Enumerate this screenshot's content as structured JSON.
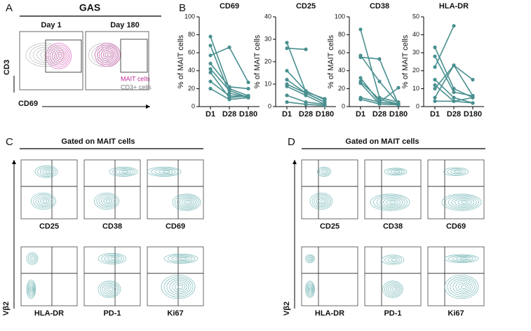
{
  "panels": {
    "a": "A",
    "b": "B",
    "c": "C",
    "d": "D"
  },
  "panel_a": {
    "title": "GAS",
    "day1": "Day 1",
    "day180": "Day 180",
    "y_label": "CD3",
    "x_label": "CD69",
    "legend": [
      "MAIT cells",
      "CD3+ cells"
    ]
  },
  "panel_c": {
    "title": "Gated on MAIT cells",
    "y_label": "Vβ2",
    "markers": [
      "CD25",
      "CD38",
      "CD69",
      "HLA-DR",
      "PD-1",
      "Ki67"
    ]
  },
  "panel_d": {
    "title": "Gated on MAIT cells",
    "y_label": "Vβ2",
    "markers": [
      "CD25",
      "CD38",
      "CD69",
      "HLA-DR",
      "PD-1",
      "Ki67"
    ]
  },
  "chart_data": [
    {
      "type": "line",
      "title": "CD69",
      "y_label": "% of MAIT cells",
      "categories": [
        "D1",
        "D28",
        "D180"
      ],
      "color": "#4a9090",
      "ylim": [
        0,
        100
      ],
      "yticks": [
        0,
        20,
        40,
        60,
        80,
        100
      ],
      "series": [
        {
          "values": [
            57,
            66,
            27
          ]
        },
        {
          "values": [
            78,
            20,
            12
          ]
        },
        {
          "values": [
            68,
            15,
            10
          ]
        },
        {
          "values": [
            48,
            22,
            20
          ]
        },
        {
          "values": [
            42,
            18,
            10
          ]
        },
        {
          "values": [
            38,
            10,
            12
          ]
        },
        {
          "values": [
            28,
            12,
            11
          ]
        },
        {
          "values": [
            20,
            8,
            10
          ]
        }
      ]
    },
    {
      "type": "line",
      "title": "CD25",
      "y_label": "% of MAIT cells",
      "categories": [
        "D1",
        "D28",
        "D180"
      ],
      "color": "#4a9090",
      "ylim": [
        0,
        40
      ],
      "yticks": [
        0,
        10,
        20,
        30,
        40
      ],
      "series": [
        {
          "values": [
            28.5,
            6.5,
            3.5
          ]
        },
        {
          "values": [
            26,
            25.5,
            null
          ]
        },
        {
          "values": [
            16,
            7,
            3
          ]
        },
        {
          "values": [
            12,
            6,
            2
          ]
        },
        {
          "values": [
            10,
            6,
            2
          ]
        },
        {
          "values": [
            9,
            5,
            1
          ]
        },
        {
          "values": [
            5,
            2,
            1
          ]
        },
        {
          "values": [
            2,
            1,
            0.5
          ]
        }
      ]
    },
    {
      "type": "line",
      "title": "CD38",
      "y_label": "% of MAIT cells",
      "categories": [
        "D1",
        "D28",
        "D180"
      ],
      "color": "#4a9090",
      "ylim": [
        0,
        100
      ],
      "yticks": [
        0,
        20,
        40,
        60,
        80,
        100
      ],
      "series": [
        {
          "values": [
            86,
            10,
            5
          ]
        },
        {
          "values": [
            57,
            28,
            3
          ]
        },
        {
          "values": [
            55,
            53,
            2
          ]
        },
        {
          "values": [
            32,
            5,
            21
          ]
        },
        {
          "values": [
            28,
            8,
            3
          ]
        },
        {
          "values": [
            26,
            3,
            2
          ]
        },
        {
          "values": [
            10,
            5,
            3
          ]
        },
        {
          "values": [
            8,
            3,
            2
          ]
        }
      ]
    },
    {
      "type": "line",
      "title": "HLA-DR",
      "y_label": "% of MAIT cells",
      "categories": [
        "D1",
        "D28",
        "D180"
      ],
      "color": "#4a9090",
      "ylim": [
        0,
        50
      ],
      "yticks": [
        0,
        10,
        20,
        30,
        40,
        50
      ],
      "series": [
        {
          "values": [
            22,
            45,
            null
          ]
        },
        {
          "values": [
            10,
            23,
            15
          ]
        },
        {
          "values": [
            33,
            10,
            5
          ]
        },
        {
          "values": [
            28,
            8,
            6
          ]
        },
        {
          "values": [
            15,
            5,
            2
          ]
        },
        {
          "values": [
            12,
            3,
            5
          ]
        },
        {
          "values": [
            5,
            23,
            6
          ]
        },
        {
          "values": [
            3,
            3,
            2
          ]
        }
      ]
    }
  ]
}
